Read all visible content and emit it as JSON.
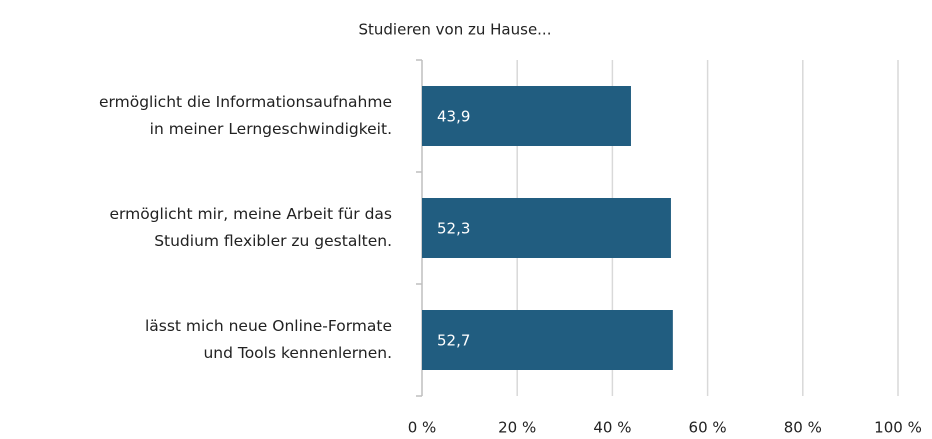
{
  "chart_data": {
    "type": "bar",
    "orientation": "horizontal",
    "title": "Studieren von zu Hause...",
    "categories": [
      "ermöglicht die Informationsaufnahme\nin meiner Lerngeschwindigkeit.",
      "ermöglicht mir, meine Arbeit für das\nStudium flexibler zu gestalten.",
      "lässt mich neue Online-Formate\nund Tools kennenlernen."
    ],
    "values": [
      43.9,
      52.3,
      52.7
    ],
    "value_labels": [
      "43,9",
      "52,3",
      "52,7"
    ],
    "color": "#215d80",
    "xlim": [
      0,
      100
    ],
    "xticks": [
      {
        "value": 0,
        "label": "0 %"
      },
      {
        "value": 20,
        "label": "20 %"
      },
      {
        "value": 40,
        "label": "40 %"
      },
      {
        "value": 60,
        "label": "60 %"
      },
      {
        "value": 80,
        "label": "80 %"
      },
      {
        "value": 100,
        "label": "100 %"
      }
    ],
    "grid": true
  }
}
